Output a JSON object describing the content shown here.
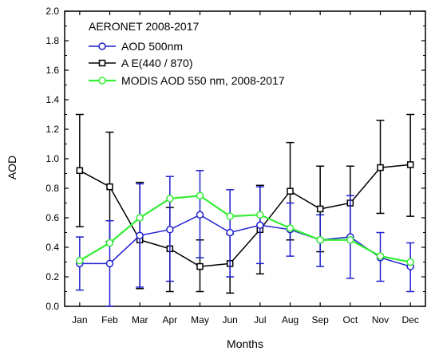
{
  "chart_data": {
    "type": "line",
    "title": "",
    "xlabel": "Months",
    "ylabel": "AOD",
    "ylim": [
      0.0,
      2.0
    ],
    "yticks": [
      "0.0",
      "0.2",
      "0.4",
      "0.6",
      "0.8",
      "1.0",
      "1.2",
      "1.4",
      "1.6",
      "1.8",
      "2.0"
    ],
    "categories": [
      "Jan",
      "Feb",
      "Mar",
      "Apr",
      "May",
      "Jun",
      "Jul",
      "Aug",
      "Sep",
      "Oct",
      "Nov",
      "Dec"
    ],
    "grid": false,
    "legend_placement": "top-left",
    "legend_title": "AERONET 2008-2017",
    "series": [
      {
        "name": "AOD 500nm",
        "color": "#1f1fd0",
        "marker": "circle",
        "values": [
          0.29,
          0.29,
          0.48,
          0.52,
          0.62,
          0.5,
          0.55,
          0.52,
          0.45,
          0.47,
          0.33,
          0.27
        ],
        "err_low": [
          0.11,
          0.0,
          0.13,
          0.17,
          0.33,
          0.2,
          0.29,
          0.34,
          0.27,
          0.19,
          0.17,
          0.1
        ],
        "err_high": [
          0.47,
          0.58,
          0.83,
          0.88,
          0.92,
          0.79,
          0.81,
          0.7,
          0.62,
          0.75,
          0.5,
          0.43
        ]
      },
      {
        "name": "A E(440 / 870)",
        "color": "#000000",
        "marker": "square",
        "values": [
          0.92,
          0.81,
          0.45,
          0.39,
          0.27,
          0.29,
          0.52,
          0.78,
          0.66,
          0.7,
          0.94,
          0.96
        ],
        "err_low": [
          0.54,
          0.44,
          0.12,
          0.1,
          0.1,
          0.09,
          0.22,
          0.45,
          0.37,
          0.45,
          0.63,
          0.61
        ],
        "err_high": [
          1.3,
          1.18,
          0.84,
          0.67,
          0.45,
          0.49,
          0.82,
          1.11,
          0.95,
          0.95,
          1.26,
          1.3
        ]
      },
      {
        "name": "MODIS AOD 550 nm, 2008-2017",
        "color": "#33ee33",
        "marker": "circle",
        "values": [
          0.31,
          0.43,
          0.6,
          0.73,
          0.75,
          0.61,
          0.62,
          0.53,
          0.45,
          0.45,
          0.34,
          0.3
        ]
      }
    ]
  }
}
